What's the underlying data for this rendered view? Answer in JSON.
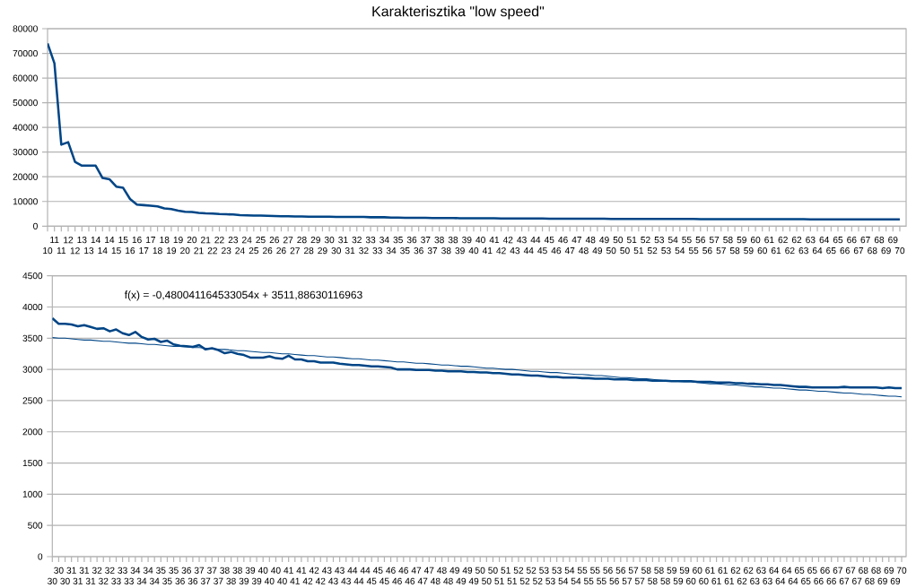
{
  "chart_data": [
    {
      "type": "line",
      "title": "Karakterisztika \"low speed\"",
      "categories": [
        "10",
        "11",
        "11",
        "12",
        "12",
        "13",
        "13",
        "14",
        "14",
        "14",
        "15",
        "15",
        "16",
        "16",
        "17",
        "17",
        "18",
        "18",
        "19",
        "19",
        "20",
        "20",
        "21",
        "21",
        "22",
        "22",
        "23",
        "23",
        "24",
        "24",
        "25",
        "25",
        "26",
        "26",
        "26",
        "27",
        "27",
        "28",
        "28",
        "29",
        "29",
        "30",
        "30",
        "31",
        "31",
        "32",
        "32",
        "33",
        "33",
        "34",
        "34",
        "35",
        "35",
        "36",
        "36",
        "37",
        "37",
        "38",
        "38",
        "38",
        "39",
        "39",
        "40",
        "40",
        "41",
        "41",
        "42",
        "42",
        "43",
        "43",
        "44",
        "44",
        "45",
        "45",
        "46",
        "46",
        "47",
        "47",
        "48",
        "48",
        "49",
        "49",
        "50",
        "50",
        "50",
        "51",
        "51",
        "52",
        "52",
        "53",
        "53",
        "54",
        "54",
        "55",
        "55",
        "56",
        "56",
        "57",
        "57",
        "58",
        "58",
        "59",
        "59",
        "60",
        "60",
        "61",
        "61",
        "62",
        "62",
        "62",
        "63",
        "63",
        "64",
        "64",
        "65",
        "65",
        "66",
        "66",
        "67",
        "67",
        "68",
        "68",
        "69",
        "69",
        "70"
      ],
      "values": [
        74000,
        66000,
        33000,
        34000,
        26000,
        24500,
        24500,
        24500,
        19500,
        19000,
        16000,
        15500,
        11000,
        8700,
        8500,
        8300,
        8000,
        7200,
        6900,
        6300,
        5800,
        5700,
        5400,
        5200,
        5100,
        4900,
        4800,
        4700,
        4500,
        4400,
        4300,
        4300,
        4200,
        4100,
        4000,
        4000,
        3900,
        3900,
        3800,
        3800,
        3800,
        3800,
        3700,
        3700,
        3700,
        3700,
        3700,
        3600,
        3600,
        3600,
        3500,
        3500,
        3400,
        3400,
        3400,
        3400,
        3300,
        3300,
        3300,
        3300,
        3200,
        3200,
        3200,
        3200,
        3200,
        3200,
        3100,
        3100,
        3100,
        3100,
        3100,
        3100,
        3100,
        3000,
        3000,
        3000,
        3000,
        3000,
        3000,
        3000,
        3000,
        3000,
        2900,
        2900,
        2900,
        2900,
        2900,
        2900,
        2900,
        2900,
        2900,
        2900,
        2900,
        2900,
        2900,
        2800,
        2800,
        2800,
        2800,
        2800,
        2800,
        2800,
        2800,
        2800,
        2800,
        2800,
        2800,
        2800,
        2800,
        2800,
        2800,
        2700,
        2700,
        2700,
        2700,
        2700,
        2700,
        2700,
        2700,
        2700,
        2700,
        2700,
        2700,
        2700,
        2700
      ],
      "color": "#004586",
      "ylim": [
        0,
        80000
      ],
      "yticks": [
        0,
        10000,
        20000,
        30000,
        40000,
        50000,
        60000,
        70000,
        80000
      ],
      "grid": "y"
    },
    {
      "type": "line",
      "categories": [
        "30",
        "30",
        "30",
        "31",
        "31",
        "31",
        "31",
        "32",
        "32",
        "32",
        "33",
        "33",
        "33",
        "34",
        "34",
        "34",
        "34",
        "35",
        "35",
        "35",
        "36",
        "36",
        "36",
        "37",
        "37",
        "37",
        "37",
        "38",
        "38",
        "38",
        "39",
        "39",
        "39",
        "40",
        "40",
        "40",
        "40",
        "41",
        "41",
        "41",
        "42",
        "42",
        "42",
        "43",
        "43",
        "43",
        "43",
        "44",
        "44",
        "44",
        "45",
        "45",
        "45",
        "46",
        "46",
        "46",
        "46",
        "47",
        "47",
        "47",
        "48",
        "48",
        "48",
        "49",
        "49",
        "49",
        "49",
        "50",
        "50",
        "50",
        "51",
        "51",
        "51",
        "52",
        "52",
        "52",
        "52",
        "53",
        "53",
        "53",
        "54",
        "54",
        "54",
        "55",
        "55",
        "55",
        "55",
        "56",
        "56",
        "56",
        "57",
        "57",
        "57",
        "58",
        "58",
        "58",
        "58",
        "59",
        "59",
        "59",
        "60",
        "60",
        "60",
        "61",
        "61",
        "61",
        "61",
        "62",
        "62",
        "62",
        "63",
        "63",
        "63",
        "64",
        "64",
        "64",
        "64",
        "65",
        "65",
        "65",
        "66",
        "66",
        "66",
        "67",
        "67",
        "67",
        "67",
        "68",
        "68",
        "68",
        "69",
        "69",
        "69",
        "70"
      ],
      "series": [
        {
          "color": "#004586",
          "values": [
            3820,
            3730,
            3730,
            3720,
            3690,
            3710,
            3680,
            3650,
            3660,
            3610,
            3640,
            3580,
            3550,
            3600,
            3520,
            3480,
            3490,
            3440,
            3460,
            3400,
            3380,
            3370,
            3360,
            3390,
            3320,
            3340,
            3310,
            3260,
            3280,
            3250,
            3230,
            3190,
            3190,
            3190,
            3210,
            3180,
            3170,
            3220,
            3160,
            3160,
            3130,
            3130,
            3110,
            3110,
            3110,
            3090,
            3080,
            3070,
            3070,
            3060,
            3050,
            3050,
            3040,
            3030,
            3000,
            3000,
            3000,
            2990,
            2990,
            2990,
            2980,
            2980,
            2970,
            2970,
            2970,
            2960,
            2960,
            2950,
            2950,
            2940,
            2940,
            2930,
            2920,
            2920,
            2910,
            2900,
            2900,
            2890,
            2880,
            2880,
            2870,
            2870,
            2870,
            2860,
            2860,
            2850,
            2850,
            2850,
            2840,
            2840,
            2840,
            2830,
            2830,
            2830,
            2820,
            2820,
            2820,
            2810,
            2810,
            2810,
            2810,
            2800,
            2800,
            2800,
            2790,
            2790,
            2790,
            2780,
            2780,
            2770,
            2770,
            2760,
            2760,
            2750,
            2750,
            2740,
            2730,
            2720,
            2720,
            2710,
            2710,
            2710,
            2710,
            2710,
            2720,
            2710,
            2710,
            2710,
            2710,
            2710,
            2700,
            2710,
            2700,
            2700
          ]
        },
        {
          "type": "line",
          "color": "#004586",
          "values": [
            3510,
            3500,
            3500,
            3490,
            3480,
            3470,
            3470,
            3460,
            3450,
            3450,
            3440,
            3430,
            3420,
            3420,
            3410,
            3400,
            3400,
            3390,
            3380,
            3370,
            3370,
            3360,
            3350,
            3350,
            3340,
            3330,
            3320,
            3320,
            3310,
            3300,
            3300,
            3290,
            3280,
            3270,
            3270,
            3260,
            3250,
            3250,
            3240,
            3230,
            3220,
            3220,
            3210,
            3200,
            3200,
            3190,
            3180,
            3170,
            3170,
            3160,
            3150,
            3150,
            3140,
            3130,
            3120,
            3120,
            3110,
            3100,
            3100,
            3090,
            3080,
            3070,
            3070,
            3060,
            3050,
            3050,
            3040,
            3030,
            3020,
            3020,
            3010,
            3000,
            3000,
            2990,
            2980,
            2970,
            2970,
            2960,
            2950,
            2950,
            2940,
            2930,
            2920,
            2920,
            2910,
            2900,
            2900,
            2890,
            2880,
            2870,
            2870,
            2860,
            2850,
            2850,
            2840,
            2830,
            2820,
            2820,
            2810,
            2800,
            2800,
            2790,
            2780,
            2770,
            2770,
            2760,
            2750,
            2750,
            2740,
            2730,
            2720,
            2720,
            2710,
            2700,
            2700,
            2690,
            2680,
            2670,
            2670,
            2660,
            2650,
            2650,
            2640,
            2630,
            2620,
            2620,
            2610,
            2600,
            2600,
            2590,
            2580,
            2570,
            2570,
            2560
          ]
        }
      ],
      "ylim": [
        0,
        4500
      ],
      "yticks": [
        0,
        500,
        1000,
        1500,
        2000,
        2500,
        3000,
        3500,
        4000,
        4500
      ],
      "grid": "y",
      "annotations": [
        "f(x) = -0,480041164533054x + 3511,88630116963"
      ]
    }
  ]
}
